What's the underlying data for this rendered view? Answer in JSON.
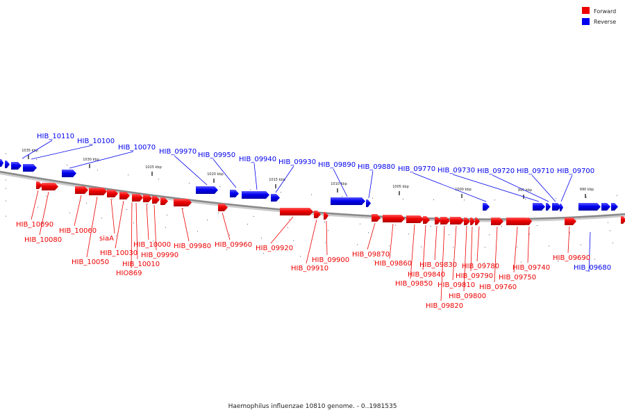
{
  "caption": "Haemophilus influenzae 10810 genome. - 0..1981535",
  "legend": [
    {
      "label": "Forward",
      "color": "#ee0000"
    },
    {
      "label": "Reverse",
      "color": "#0000ee"
    }
  ],
  "colors": {
    "forward": "#ee0000",
    "reverse": "#0000ee",
    "backbone": "#888888"
  },
  "axis": {
    "ticks": [
      "1035 kbp",
      "1030 kbp",
      "1025 kbp",
      "1020 kbp",
      "1015 kbp",
      "1010 kbp",
      "1005 kbp",
      "1000 kbp",
      "995 kbp",
      "990 kbp"
    ]
  },
  "genes": [
    {
      "name": "HIB_10110",
      "strand": "reverse"
    },
    {
      "name": "HIB_10100",
      "strand": "reverse"
    },
    {
      "name": "HIB_10070",
      "strand": "reverse"
    },
    {
      "name": "HIB_09970",
      "strand": "reverse"
    },
    {
      "name": "HIB_09950",
      "strand": "reverse"
    },
    {
      "name": "HIB_09940",
      "strand": "reverse"
    },
    {
      "name": "HIB_09930",
      "strand": "reverse"
    },
    {
      "name": "HIB_09890",
      "strand": "reverse"
    },
    {
      "name": "HIB_09880",
      "strand": "reverse"
    },
    {
      "name": "HIB_09770",
      "strand": "reverse"
    },
    {
      "name": "HIB_09730",
      "strand": "reverse"
    },
    {
      "name": "HIB_09720",
      "strand": "reverse"
    },
    {
      "name": "HIB_09710",
      "strand": "reverse"
    },
    {
      "name": "HIB_09700",
      "strand": "reverse"
    },
    {
      "name": "HIB_09680",
      "strand": "reverse"
    },
    {
      "name": "HIB_10090",
      "strand": "forward"
    },
    {
      "name": "HIB_10080",
      "strand": "forward"
    },
    {
      "name": "HIB_10060",
      "strand": "forward"
    },
    {
      "name": "HIB_10050",
      "strand": "forward"
    },
    {
      "name": "siaA",
      "strand": "forward"
    },
    {
      "name": "HIB_10030",
      "strand": "forward"
    },
    {
      "name": "HIB_10010",
      "strand": "forward"
    },
    {
      "name": "HIO869",
      "strand": "forward"
    },
    {
      "name": "HIB_10000",
      "strand": "forward"
    },
    {
      "name": "HIB_09990",
      "strand": "forward"
    },
    {
      "name": "HIB_09980",
      "strand": "forward"
    },
    {
      "name": "HIB_09960",
      "strand": "forward"
    },
    {
      "name": "HIB_09920",
      "strand": "forward"
    },
    {
      "name": "HIB_09910",
      "strand": "forward"
    },
    {
      "name": "HIB_09900",
      "strand": "forward"
    },
    {
      "name": "HIB_09870",
      "strand": "forward"
    },
    {
      "name": "HIB_09860",
      "strand": "forward"
    },
    {
      "name": "HIB_09850",
      "strand": "forward"
    },
    {
      "name": "HIB_09840",
      "strand": "forward"
    },
    {
      "name": "HIB_09830",
      "strand": "forward"
    },
    {
      "name": "HIB_09820",
      "strand": "forward"
    },
    {
      "name": "HIB_09810",
      "strand": "forward"
    },
    {
      "name": "HIB_09800",
      "strand": "forward"
    },
    {
      "name": "HIB_09790",
      "strand": "forward"
    },
    {
      "name": "HIB_09780",
      "strand": "forward"
    },
    {
      "name": "HIB_09760",
      "strand": "forward"
    },
    {
      "name": "HIB_09750",
      "strand": "forward"
    },
    {
      "name": "HIB_09740",
      "strand": "forward"
    },
    {
      "name": "HIB_09690",
      "strand": "forward"
    }
  ]
}
